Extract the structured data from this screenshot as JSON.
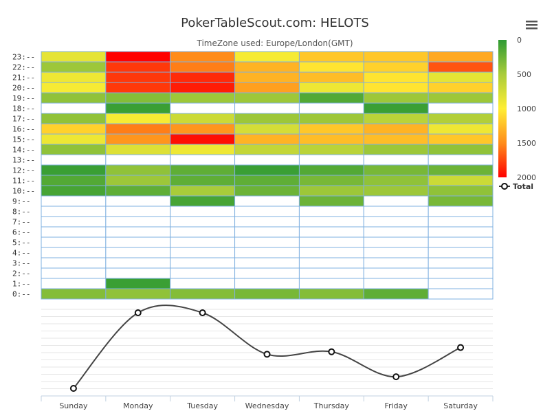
{
  "chart_data": {
    "type": "heatmap",
    "title": "PokerTableScout.com: HELOTS",
    "subtitle": "TimeZone used: Europe/London(GMT)",
    "categories": [
      "Sunday",
      "Monday",
      "Tuesday",
      "Wednesday",
      "Thursday",
      "Friday",
      "Saturday"
    ],
    "y_categories": [
      "0:--",
      "1:--",
      "2:--",
      "3:--",
      "4:--",
      "5:--",
      "6:--",
      "7:--",
      "8:--",
      "9:--",
      "10:--",
      "11:--",
      "12:--",
      "13:--",
      "14:--",
      "15:--",
      "16:--",
      "17:--",
      "18:--",
      "19:--",
      "20:--",
      "21:--",
      "22:--",
      "23:--"
    ],
    "heatmap_values": [
      [
        350,
        400,
        350,
        300,
        350,
        200,
        null
      ],
      [
        null,
        50,
        null,
        null,
        null,
        null,
        null
      ],
      [
        null,
        null,
        null,
        null,
        null,
        null,
        null
      ],
      [
        null,
        null,
        null,
        null,
        null,
        null,
        null
      ],
      [
        null,
        null,
        null,
        null,
        null,
        null,
        null
      ],
      [
        null,
        null,
        null,
        null,
        null,
        null,
        null
      ],
      [
        null,
        null,
        null,
        null,
        null,
        null,
        null
      ],
      [
        null,
        null,
        null,
        null,
        null,
        null,
        null
      ],
      [
        null,
        null,
        null,
        null,
        null,
        null,
        null
      ],
      [
        null,
        null,
        100,
        null,
        250,
        null,
        300
      ],
      [
        100,
        200,
        500,
        250,
        450,
        450,
        400
      ],
      [
        150,
        450,
        200,
        200,
        300,
        400,
        700
      ],
      [
        50,
        400,
        200,
        50,
        150,
        300,
        250
      ],
      [
        null,
        null,
        null,
        null,
        null,
        null,
        null
      ],
      [
        400,
        800,
        900,
        650,
        600,
        450,
        400
      ],
      [
        900,
        1450,
        1950,
        1300,
        1250,
        1250,
        1200
      ],
      [
        1150,
        1550,
        1450,
        750,
        1200,
        1300,
        900
      ],
      [
        400,
        950,
        700,
        450,
        450,
        600,
        550
      ],
      [
        null,
        50,
        null,
        null,
        null,
        50,
        null
      ],
      [
        400,
        350,
        450,
        450,
        150,
        450,
        450
      ],
      [
        950,
        1800,
        1900,
        1400,
        900,
        1050,
        1150
      ],
      [
        900,
        1800,
        1850,
        1300,
        1250,
        1050,
        850
      ],
      [
        450,
        1800,
        1550,
        1300,
        1050,
        1150,
        1700
      ],
      [
        850,
        2000,
        1500,
        950,
        1200,
        1200,
        1350
      ]
    ],
    "colorscale": {
      "min": 0,
      "max": 2000,
      "ticks": [
        0,
        500,
        1000,
        1500,
        2000
      ]
    },
    "series": [
      {
        "name": "Total",
        "values": [
          7750,
          13950,
          13950,
          10550,
          10750,
          8700,
          11100
        ]
      }
    ],
    "legend_position": "right",
    "grid": true
  },
  "ui": {
    "menu_icon": "hamburger-menu-icon"
  }
}
